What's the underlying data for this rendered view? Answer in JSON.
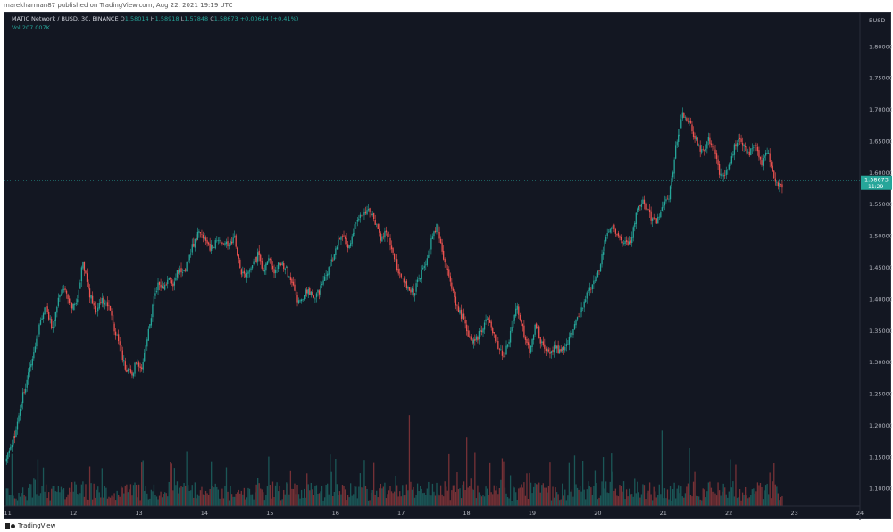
{
  "header": {
    "published_text": "marekharman87 published on TradingView.com, Aug 22, 2021 19:19 UTC"
  },
  "legend": {
    "symbol": "MATIC Network / BUSD, 30, BINANCE",
    "o_key": "O",
    "o_val": "1.58014",
    "h_key": "H",
    "h_val": "1.58918",
    "l_key": "L",
    "l_val": "1.57848",
    "c_key": "C",
    "c_val": "1.58673",
    "change": "+0.00644 (+0.41%)",
    "vol_key": "Vol",
    "vol_val": "207.007K"
  },
  "footer": {
    "brand": "TradingView"
  },
  "colors": {
    "background": "#131722",
    "up": "#26a69a",
    "down": "#ef5350",
    "text": "#b2b5be",
    "price_line": "#26a69a"
  },
  "chart_data": {
    "type": "candlestick",
    "currency": "BUSD",
    "last_price": "1.58673",
    "countdown": "11:29",
    "y_ticks": [
      "1.80000",
      "1.75000",
      "1.70000",
      "1.65000",
      "1.60000",
      "1.55000",
      "1.50000",
      "1.45000",
      "1.40000",
      "1.35000",
      "1.30000",
      "1.25000",
      "1.20000",
      "1.15000",
      "1.10000"
    ],
    "ylim": [
      1.072,
      1.852
    ],
    "x_ticks": [
      "11",
      "12",
      "13",
      "14",
      "15",
      "16",
      "17",
      "18",
      "19",
      "20",
      "21",
      "22",
      "23",
      "24"
    ],
    "x_tick_days": [
      11,
      12,
      13,
      14,
      15,
      16,
      17,
      18,
      19,
      20,
      21,
      22,
      23,
      24
    ],
    "xlim": [
      10.95,
      24.0
    ],
    "close_path": [
      [
        10.96,
        1.142
      ],
      [
        11.05,
        1.165
      ],
      [
        11.13,
        1.19
      ],
      [
        11.2,
        1.235
      ],
      [
        11.28,
        1.265
      ],
      [
        11.38,
        1.31
      ],
      [
        11.48,
        1.36
      ],
      [
        11.58,
        1.385
      ],
      [
        11.68,
        1.355
      ],
      [
        11.78,
        1.4
      ],
      [
        11.88,
        1.42
      ],
      [
        11.98,
        1.38
      ],
      [
        12.08,
        1.405
      ],
      [
        12.14,
        1.465
      ],
      [
        12.24,
        1.41
      ],
      [
        12.34,
        1.38
      ],
      [
        12.44,
        1.4
      ],
      [
        12.54,
        1.39
      ],
      [
        12.62,
        1.355
      ],
      [
        12.7,
        1.33
      ],
      [
        12.8,
        1.29
      ],
      [
        12.9,
        1.28
      ],
      [
        12.96,
        1.3
      ],
      [
        13.05,
        1.29
      ],
      [
        13.12,
        1.33
      ],
      [
        13.22,
        1.395
      ],
      [
        13.3,
        1.43
      ],
      [
        13.36,
        1.415
      ],
      [
        13.44,
        1.43
      ],
      [
        13.52,
        1.425
      ],
      [
        13.6,
        1.445
      ],
      [
        13.68,
        1.44
      ],
      [
        13.76,
        1.465
      ],
      [
        13.84,
        1.49
      ],
      [
        13.92,
        1.505
      ],
      [
        14.0,
        1.495
      ],
      [
        14.08,
        1.48
      ],
      [
        14.18,
        1.488
      ],
      [
        14.28,
        1.492
      ],
      [
        14.38,
        1.488
      ],
      [
        14.46,
        1.495
      ],
      [
        14.56,
        1.44
      ],
      [
        14.64,
        1.435
      ],
      [
        14.72,
        1.45
      ],
      [
        14.82,
        1.47
      ],
      [
        14.9,
        1.445
      ],
      [
        14.98,
        1.46
      ],
      [
        15.06,
        1.445
      ],
      [
        15.16,
        1.46
      ],
      [
        15.24,
        1.45
      ],
      [
        15.34,
        1.42
      ],
      [
        15.44,
        1.395
      ],
      [
        15.54,
        1.41
      ],
      [
        15.62,
        1.41
      ],
      [
        15.7,
        1.405
      ],
      [
        15.8,
        1.42
      ],
      [
        15.9,
        1.45
      ],
      [
        16.0,
        1.48
      ],
      [
        16.1,
        1.5
      ],
      [
        16.2,
        1.48
      ],
      [
        16.3,
        1.515
      ],
      [
        16.4,
        1.535
      ],
      [
        16.5,
        1.545
      ],
      [
        16.6,
        1.52
      ],
      [
        16.7,
        1.495
      ],
      [
        16.78,
        1.505
      ],
      [
        16.86,
        1.48
      ],
      [
        16.94,
        1.45
      ],
      [
        17.02,
        1.43
      ],
      [
        17.1,
        1.42
      ],
      [
        17.2,
        1.41
      ],
      [
        17.3,
        1.44
      ],
      [
        17.38,
        1.455
      ],
      [
        17.46,
        1.49
      ],
      [
        17.54,
        1.515
      ],
      [
        17.64,
        1.47
      ],
      [
        17.74,
        1.43
      ],
      [
        17.84,
        1.39
      ],
      [
        17.94,
        1.37
      ],
      [
        18.02,
        1.345
      ],
      [
        18.1,
        1.33
      ],
      [
        18.2,
        1.345
      ],
      [
        18.3,
        1.37
      ],
      [
        18.4,
        1.35
      ],
      [
        18.5,
        1.32
      ],
      [
        18.58,
        1.31
      ],
      [
        18.66,
        1.34
      ],
      [
        18.76,
        1.39
      ],
      [
        18.86,
        1.35
      ],
      [
        18.96,
        1.32
      ],
      [
        19.06,
        1.36
      ],
      [
        19.14,
        1.33
      ],
      [
        19.24,
        1.315
      ],
      [
        19.34,
        1.325
      ],
      [
        19.44,
        1.315
      ],
      [
        19.54,
        1.33
      ],
      [
        19.64,
        1.36
      ],
      [
        19.74,
        1.38
      ],
      [
        19.84,
        1.41
      ],
      [
        19.94,
        1.425
      ],
      [
        20.04,
        1.45
      ],
      [
        20.12,
        1.5
      ],
      [
        20.2,
        1.52
      ],
      [
        20.3,
        1.5
      ],
      [
        20.4,
        1.49
      ],
      [
        20.5,
        1.49
      ],
      [
        20.6,
        1.54
      ],
      [
        20.7,
        1.555
      ],
      [
        20.8,
        1.53
      ],
      [
        20.9,
        1.52
      ],
      [
        21.0,
        1.545
      ],
      [
        21.08,
        1.56
      ],
      [
        21.14,
        1.6
      ],
      [
        21.22,
        1.66
      ],
      [
        21.3,
        1.695
      ],
      [
        21.4,
        1.68
      ],
      [
        21.5,
        1.65
      ],
      [
        21.6,
        1.63
      ],
      [
        21.7,
        1.655
      ],
      [
        21.78,
        1.63
      ],
      [
        21.86,
        1.6
      ],
      [
        21.94,
        1.59
      ],
      [
        22.02,
        1.62
      ],
      [
        22.12,
        1.65
      ],
      [
        22.2,
        1.645
      ],
      [
        22.3,
        1.63
      ],
      [
        22.4,
        1.65
      ],
      [
        22.5,
        1.615
      ],
      [
        22.56,
        1.63
      ],
      [
        22.62,
        1.625
      ],
      [
        22.68,
        1.595
      ],
      [
        22.74,
        1.58
      ],
      [
        22.82,
        1.58
      ]
    ]
  }
}
